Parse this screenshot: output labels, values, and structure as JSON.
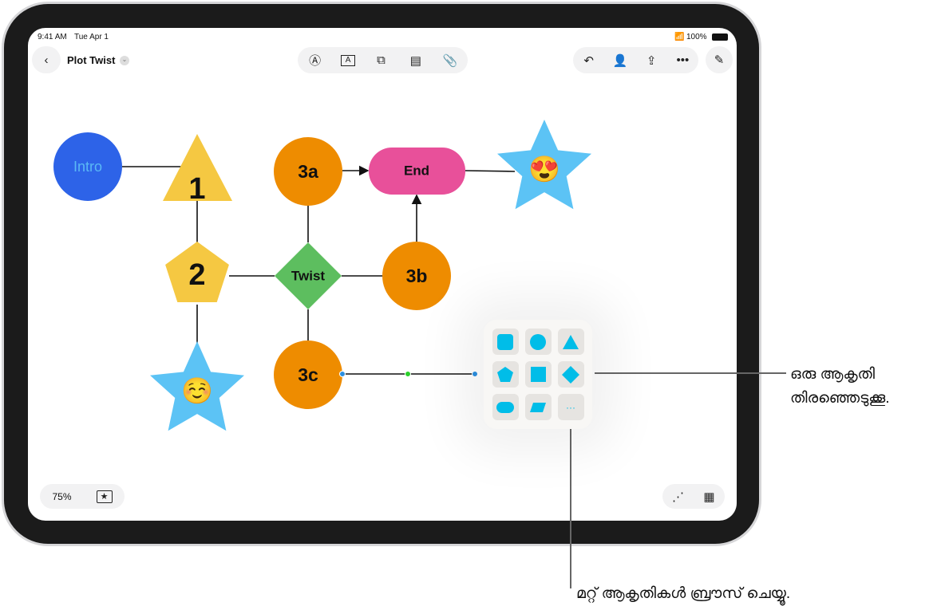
{
  "status": {
    "time": "9:41 AM",
    "date": "Tue Apr 1",
    "battery": "100%"
  },
  "toolbar": {
    "back_icon": "chevron-left-icon",
    "title": "Plot Twist",
    "center_tools": [
      "pen-icon",
      "text-box-icon",
      "shapes-icon",
      "sticky-note-icon",
      "attachment-icon"
    ],
    "right_tools": [
      "undo-icon",
      "collaboration-icon",
      "share-icon",
      "more-icon"
    ],
    "compose_icon": "compose-icon"
  },
  "canvas": {
    "nodes": [
      {
        "label": "Intro",
        "shape": "circle",
        "color": "#2D63E8"
      },
      {
        "label": "1",
        "shape": "triangle",
        "color": "#F5C842"
      },
      {
        "label": "2",
        "shape": "pentagon",
        "color": "#F5C842"
      },
      {
        "label": "Twist",
        "shape": "diamond",
        "color": "#5DBE5F"
      },
      {
        "label": "3a",
        "shape": "circle",
        "color": "#EE8C00"
      },
      {
        "label": "3b",
        "shape": "circle",
        "color": "#EE8C00"
      },
      {
        "label": "3c",
        "shape": "circle",
        "color": "#EE8C00"
      },
      {
        "label": "End",
        "shape": "pill",
        "color": "#E8509A"
      },
      {
        "label": "😍",
        "shape": "star",
        "color": "#5CC3F5"
      },
      {
        "label": "☺️",
        "shape": "star",
        "color": "#5CC3F5"
      }
    ]
  },
  "shape_picker": {
    "accent": "#00BDE8",
    "shapes": [
      "rounded-square",
      "circle",
      "triangle",
      "pentagon",
      "square",
      "diamond",
      "pill",
      "parallelogram",
      "more"
    ],
    "more_label": "···"
  },
  "bottom": {
    "zoom": "75%",
    "favorites_icon": "star-icon",
    "connect_icon": "connection-icon",
    "grid_icon": "grid-icon"
  },
  "callouts": {
    "choose_shape": [
      "ഒരു ആകൃതി",
      "തിരഞ്ഞെടുക്കൂ."
    ],
    "browse_more": "മറ്റ് ആകൃതികൾ ബ്രൗസ് ചെയ്യൂ."
  }
}
